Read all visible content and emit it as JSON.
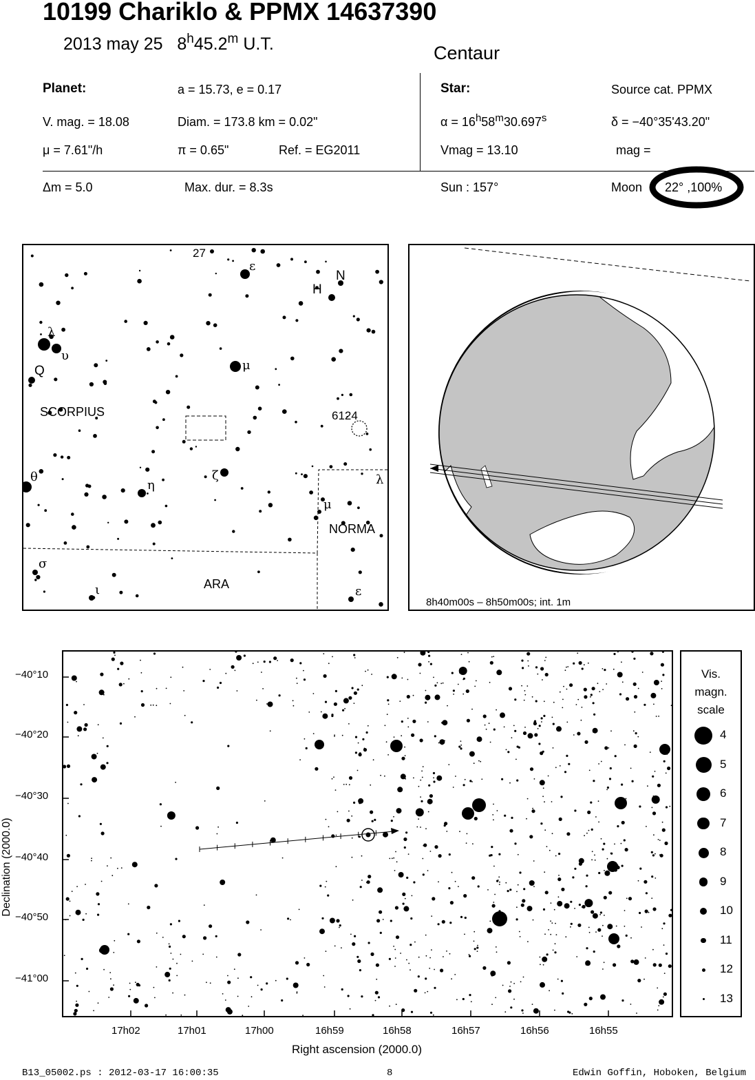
{
  "header": {
    "title": "10199 Chariklo  &  PPMX 14637390",
    "date": "2013 may 25",
    "time_h": "8",
    "time_h_unit": "h",
    "time_m": "45.2",
    "time_m_unit": "m",
    "time_suffix": "U.T.",
    "object_class": "Centaur"
  },
  "planet": {
    "label": "Planet:",
    "orbit": "a = 15.73, e = 0.17",
    "vmag": "V. mag. = 18.08",
    "diam": "Diam. = 173.8 km = 0.02\"",
    "mu": "μ =  7.61\"/h",
    "pi": "π =  0.65\"",
    "ref": "Ref. = EG2011"
  },
  "star": {
    "label": "Star:",
    "source": "Source cat.  PPMX",
    "alpha_prefix": "α = 16",
    "alpha_h": "h",
    "alpha_mid": "58",
    "alpha_m": "m",
    "alpha_sec": "30.697",
    "alpha_s": "s",
    "delta": "δ = −40°35'43.20\"",
    "vmag": "Vmag = 13.10",
    "mag": "mag ="
  },
  "event": {
    "dm": "Δm = 5.0",
    "maxdur": "Max. dur. = 8.3s",
    "sun": "Sun : 157°",
    "moon_label": "Moon",
    "moon_value": "22° ,100%"
  },
  "finder": {
    "labels": {
      "n27": "27",
      "eps_top": "ε",
      "H": "H",
      "N": "N",
      "lambda_top": "λ",
      "upsilon": "υ",
      "Q": "Q",
      "mu_top": "μ",
      "scorpius": "SCORPIUS",
      "ngc": "6124",
      "theta": "θ",
      "eta": "η",
      "zeta": "ζ",
      "lambda_r": "λ",
      "mu_r": "μ",
      "norma": "NORMA",
      "sigma": "σ",
      "iota": "ι",
      "ara": "ARA",
      "eps_bottom": "ε"
    }
  },
  "globe": {
    "caption": "8h40m00s –  8h50m00s; int.  1m"
  },
  "chart_data": {
    "type": "scatter",
    "xlabel": "Right ascension (2000.0)",
    "ylabel": "Declination (2000.0)",
    "x_ticks": [
      "17h02",
      "17h01",
      "17h00",
      "16h59",
      "16h58",
      "16h57",
      "16h56",
      "16h55"
    ],
    "y_ticks": [
      "−40°10",
      "−40°20",
      "−40°30",
      "−40°40",
      "−40°50",
      "−41°00"
    ],
    "track": {
      "start": {
        "ra": "17h01.0",
        "dec": -40.635
      },
      "end": {
        "ra": "16h58.1",
        "dec": -40.57
      },
      "star": {
        "ra": "16h58.5",
        "dec": -40.595
      }
    },
    "legend": {
      "title_lines": [
        "Vis.",
        "magn.",
        "scale"
      ],
      "mags": [
        "4",
        "5",
        "6",
        "7",
        "8",
        "9",
        "10",
        "11",
        "12",
        "13"
      ]
    }
  },
  "footer": {
    "file": "B13_05002.ps : 2012-03-17 16:00:35",
    "page": "8",
    "author": "Edwin Goffin, Hoboken, Belgium"
  }
}
